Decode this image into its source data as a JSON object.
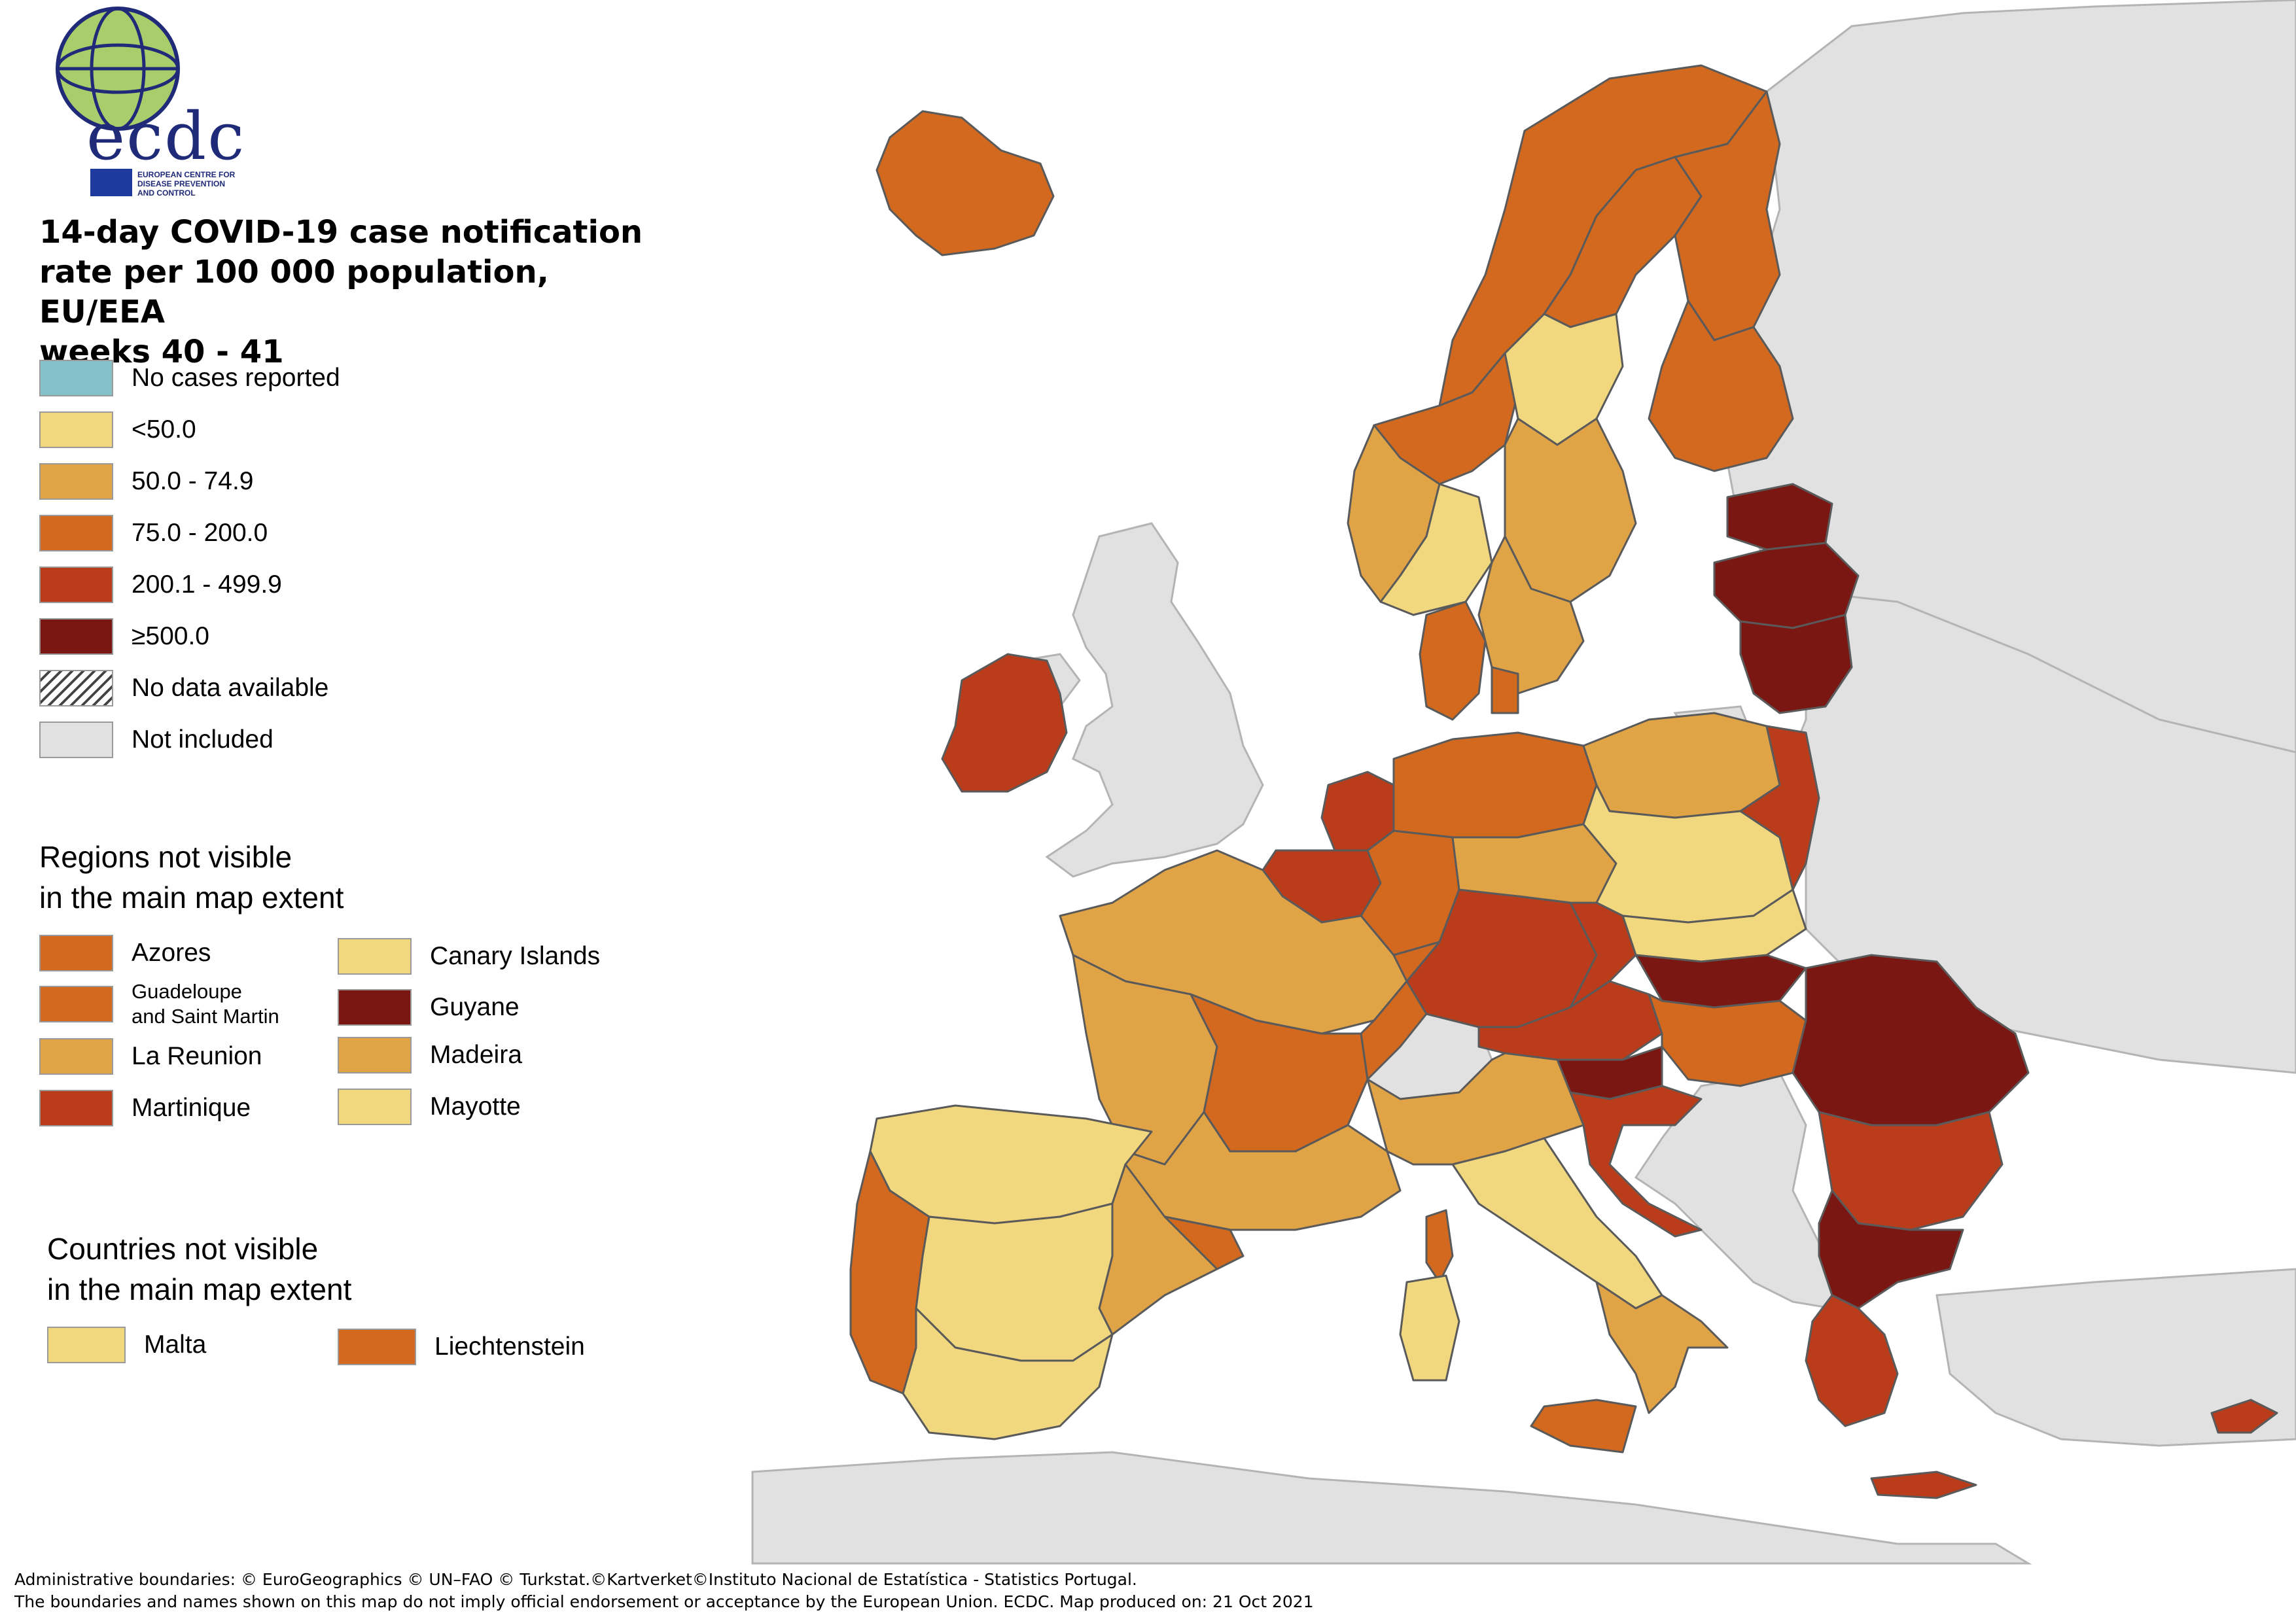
{
  "logo": {
    "wordmark": "ecdc",
    "agency_line1": "EUROPEAN CENTRE FOR",
    "agency_line2": "DISEASE PREVENTION",
    "agency_line3": "AND CONTROL"
  },
  "title": {
    "line1": "14-day COVID-19 case notification",
    "line2": "rate per 100 000 population, EU/EEA",
    "line3": "weeks 40 - 41"
  },
  "legend": {
    "items": [
      {
        "label": "No cases reported",
        "color": "#85c1c8"
      },
      {
        "label": "<50.0",
        "color": "#f1d77e"
      },
      {
        "label": "50.0 - 74.9",
        "color": "#e0a447"
      },
      {
        "label": "75.0 - 200.0",
        "color": "#d2691e"
      },
      {
        "label": "200.1 - 499.9",
        "color": "#bb3c1a"
      },
      {
        "label": "≥500.0",
        "color": "#7b1712"
      },
      {
        "label": "No data available",
        "color": "hatched"
      },
      {
        "label": "Not included",
        "color": "#e1e1e1"
      }
    ]
  },
  "regions_inset": {
    "title_line1": "Regions not visible",
    "title_line2": "in the main map extent",
    "items": [
      {
        "label": "Azores",
        "color": "#d2691e"
      },
      {
        "label": "Canary Islands",
        "color": "#f1d77e"
      },
      {
        "label_line1": "Guadeloupe",
        "label_line2": "and Saint Martin",
        "color": "#d2691e"
      },
      {
        "label": "Guyane",
        "color": "#7b1712"
      },
      {
        "label": "La Reunion",
        "color": "#e0a447"
      },
      {
        "label": "Madeira",
        "color": "#e0a447"
      },
      {
        "label": "Martinique",
        "color": "#bb3c1a"
      },
      {
        "label": "Mayotte",
        "color": "#f1d77e"
      }
    ]
  },
  "countries_inset": {
    "title_line1": "Countries not visible",
    "title_line2": "in the main map extent",
    "items": [
      {
        "label": "Malta",
        "color": "#f1d77e"
      },
      {
        "label": "Liechtenstein",
        "color": "#d2691e"
      }
    ]
  },
  "footer": {
    "line1": "Administrative boundaries: © EuroGeographics © UN–FAO © Turkstat.©Kartverket©Instituto Nacional de Estatística - Statistics Portugal.",
    "line2": "The boundaries and names shown on this map do not imply official endorsement or acceptance by the European Union. ECDC. Map produced on: 21 Oct 2021"
  }
}
